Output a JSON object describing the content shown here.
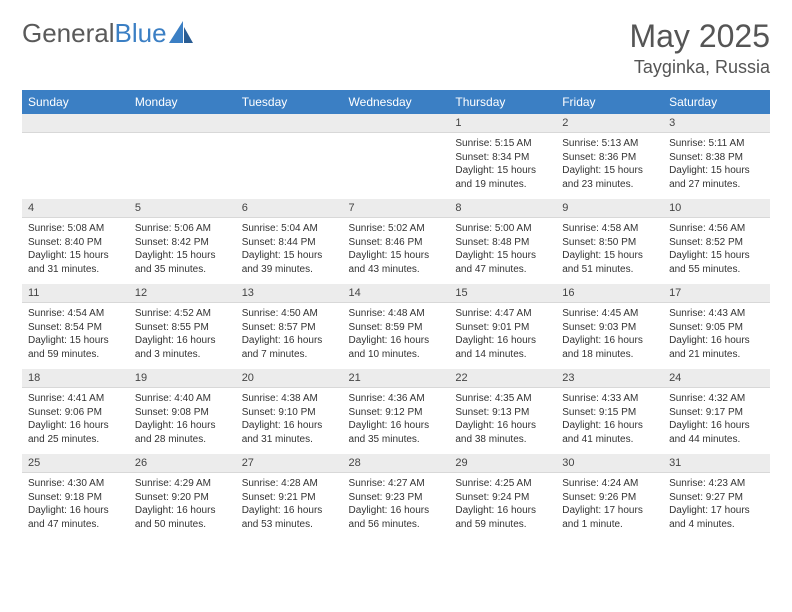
{
  "logo": {
    "text1": "General",
    "text2": "Blue"
  },
  "title": "May 2025",
  "location": "Tayginka, Russia",
  "colors": {
    "header_bg": "#3b7fc4",
    "header_text": "#ffffff",
    "daynum_bg": "#ececec",
    "page_bg": "#ffffff",
    "text": "#333333",
    "logo_gray": "#5a5a5a",
    "logo_blue": "#3b7fc4"
  },
  "weekdays": [
    "Sunday",
    "Monday",
    "Tuesday",
    "Wednesday",
    "Thursday",
    "Friday",
    "Saturday"
  ],
  "weeks": [
    [
      {
        "n": "",
        "lines": []
      },
      {
        "n": "",
        "lines": []
      },
      {
        "n": "",
        "lines": []
      },
      {
        "n": "",
        "lines": []
      },
      {
        "n": "1",
        "lines": [
          "Sunrise: 5:15 AM",
          "Sunset: 8:34 PM",
          "Daylight: 15 hours and 19 minutes."
        ]
      },
      {
        "n": "2",
        "lines": [
          "Sunrise: 5:13 AM",
          "Sunset: 8:36 PM",
          "Daylight: 15 hours and 23 minutes."
        ]
      },
      {
        "n": "3",
        "lines": [
          "Sunrise: 5:11 AM",
          "Sunset: 8:38 PM",
          "Daylight: 15 hours and 27 minutes."
        ]
      }
    ],
    [
      {
        "n": "4",
        "lines": [
          "Sunrise: 5:08 AM",
          "Sunset: 8:40 PM",
          "Daylight: 15 hours and 31 minutes."
        ]
      },
      {
        "n": "5",
        "lines": [
          "Sunrise: 5:06 AM",
          "Sunset: 8:42 PM",
          "Daylight: 15 hours and 35 minutes."
        ]
      },
      {
        "n": "6",
        "lines": [
          "Sunrise: 5:04 AM",
          "Sunset: 8:44 PM",
          "Daylight: 15 hours and 39 minutes."
        ]
      },
      {
        "n": "7",
        "lines": [
          "Sunrise: 5:02 AM",
          "Sunset: 8:46 PM",
          "Daylight: 15 hours and 43 minutes."
        ]
      },
      {
        "n": "8",
        "lines": [
          "Sunrise: 5:00 AM",
          "Sunset: 8:48 PM",
          "Daylight: 15 hours and 47 minutes."
        ]
      },
      {
        "n": "9",
        "lines": [
          "Sunrise: 4:58 AM",
          "Sunset: 8:50 PM",
          "Daylight: 15 hours and 51 minutes."
        ]
      },
      {
        "n": "10",
        "lines": [
          "Sunrise: 4:56 AM",
          "Sunset: 8:52 PM",
          "Daylight: 15 hours and 55 minutes."
        ]
      }
    ],
    [
      {
        "n": "11",
        "lines": [
          "Sunrise: 4:54 AM",
          "Sunset: 8:54 PM",
          "Daylight: 15 hours and 59 minutes."
        ]
      },
      {
        "n": "12",
        "lines": [
          "Sunrise: 4:52 AM",
          "Sunset: 8:55 PM",
          "Daylight: 16 hours and 3 minutes."
        ]
      },
      {
        "n": "13",
        "lines": [
          "Sunrise: 4:50 AM",
          "Sunset: 8:57 PM",
          "Daylight: 16 hours and 7 minutes."
        ]
      },
      {
        "n": "14",
        "lines": [
          "Sunrise: 4:48 AM",
          "Sunset: 8:59 PM",
          "Daylight: 16 hours and 10 minutes."
        ]
      },
      {
        "n": "15",
        "lines": [
          "Sunrise: 4:47 AM",
          "Sunset: 9:01 PM",
          "Daylight: 16 hours and 14 minutes."
        ]
      },
      {
        "n": "16",
        "lines": [
          "Sunrise: 4:45 AM",
          "Sunset: 9:03 PM",
          "Daylight: 16 hours and 18 minutes."
        ]
      },
      {
        "n": "17",
        "lines": [
          "Sunrise: 4:43 AM",
          "Sunset: 9:05 PM",
          "Daylight: 16 hours and 21 minutes."
        ]
      }
    ],
    [
      {
        "n": "18",
        "lines": [
          "Sunrise: 4:41 AM",
          "Sunset: 9:06 PM",
          "Daylight: 16 hours and 25 minutes."
        ]
      },
      {
        "n": "19",
        "lines": [
          "Sunrise: 4:40 AM",
          "Sunset: 9:08 PM",
          "Daylight: 16 hours and 28 minutes."
        ]
      },
      {
        "n": "20",
        "lines": [
          "Sunrise: 4:38 AM",
          "Sunset: 9:10 PM",
          "Daylight: 16 hours and 31 minutes."
        ]
      },
      {
        "n": "21",
        "lines": [
          "Sunrise: 4:36 AM",
          "Sunset: 9:12 PM",
          "Daylight: 16 hours and 35 minutes."
        ]
      },
      {
        "n": "22",
        "lines": [
          "Sunrise: 4:35 AM",
          "Sunset: 9:13 PM",
          "Daylight: 16 hours and 38 minutes."
        ]
      },
      {
        "n": "23",
        "lines": [
          "Sunrise: 4:33 AM",
          "Sunset: 9:15 PM",
          "Daylight: 16 hours and 41 minutes."
        ]
      },
      {
        "n": "24",
        "lines": [
          "Sunrise: 4:32 AM",
          "Sunset: 9:17 PM",
          "Daylight: 16 hours and 44 minutes."
        ]
      }
    ],
    [
      {
        "n": "25",
        "lines": [
          "Sunrise: 4:30 AM",
          "Sunset: 9:18 PM",
          "Daylight: 16 hours and 47 minutes."
        ]
      },
      {
        "n": "26",
        "lines": [
          "Sunrise: 4:29 AM",
          "Sunset: 9:20 PM",
          "Daylight: 16 hours and 50 minutes."
        ]
      },
      {
        "n": "27",
        "lines": [
          "Sunrise: 4:28 AM",
          "Sunset: 9:21 PM",
          "Daylight: 16 hours and 53 minutes."
        ]
      },
      {
        "n": "28",
        "lines": [
          "Sunrise: 4:27 AM",
          "Sunset: 9:23 PM",
          "Daylight: 16 hours and 56 minutes."
        ]
      },
      {
        "n": "29",
        "lines": [
          "Sunrise: 4:25 AM",
          "Sunset: 9:24 PM",
          "Daylight: 16 hours and 59 minutes."
        ]
      },
      {
        "n": "30",
        "lines": [
          "Sunrise: 4:24 AM",
          "Sunset: 9:26 PM",
          "Daylight: 17 hours and 1 minute."
        ]
      },
      {
        "n": "31",
        "lines": [
          "Sunrise: 4:23 AM",
          "Sunset: 9:27 PM",
          "Daylight: 17 hours and 4 minutes."
        ]
      }
    ]
  ]
}
